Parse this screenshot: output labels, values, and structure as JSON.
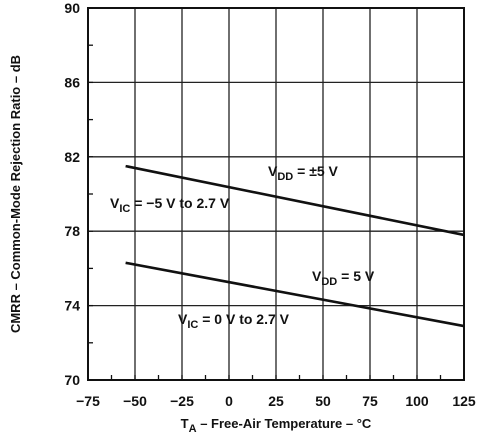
{
  "chart_data": {
    "type": "line",
    "xlabel": {
      "main": "T",
      "sub": "A",
      "rest": " – Free-Air Temperature – °C"
    },
    "ylabel": "CMRR – Common-Mode Rejection Ratio – dB",
    "xlim": [
      -75,
      125
    ],
    "ylim": [
      70,
      90
    ],
    "xticks": [
      -75,
      -50,
      -25,
      0,
      25,
      50,
      75,
      100,
      125
    ],
    "xtick_labels": [
      "−75",
      "−50",
      "−25",
      "0",
      "25",
      "50",
      "75",
      "100",
      "125"
    ],
    "yticks": [
      70,
      74,
      78,
      82,
      86,
      90
    ],
    "ytick_labels": [
      "70",
      "74",
      "78",
      "82",
      "86",
      "90"
    ],
    "grid": true,
    "series": [
      {
        "x": [
          -55,
          125
        ],
        "y": [
          81.5,
          77.8
        ]
      },
      {
        "x": [
          -55,
          125
        ],
        "y": [
          76.3,
          72.9
        ]
      }
    ],
    "annotations": [
      {
        "main": "V",
        "sub": "DD",
        "rest": " = ±5 V"
      },
      {
        "main": "V",
        "sub": "IC",
        "rest": " = −5 V to 2.7 V"
      },
      {
        "main": "V",
        "sub": "DD",
        "rest": " = 5 V"
      },
      {
        "main": "V",
        "sub": "IC",
        "rest": " = 0 V to 2.7 V"
      }
    ]
  }
}
